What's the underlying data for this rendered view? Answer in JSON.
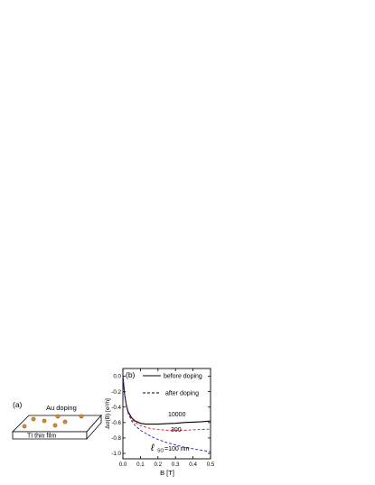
{
  "panel_a": {
    "label": "(a)",
    "doping_label": "Au doping",
    "film_label": "TI thin film"
  },
  "panel_b": {
    "label": "(b)",
    "annotations": [
      "10000",
      "300",
      "=100 nm"
    ],
    "annotation_symbol": "ℓ",
    "annotation_subscript": "SO"
  },
  "chart_data": {
    "type": "line",
    "xlabel": "B [T]",
    "ylabel": "Δσ(B) [e²/h]",
    "xlim": [
      0.0,
      0.5
    ],
    "ylim": [
      -1.07,
      0.1
    ],
    "xticks": [
      "0.0",
      "0.1",
      "0.2",
      "0.3",
      "0.4",
      "0.5"
    ],
    "xtick_values": [
      0.0,
      0.1,
      0.2,
      0.3,
      0.4,
      0.5
    ],
    "yticks": [
      "0.0",
      "-0.2",
      "-0.4",
      "-0.6",
      "-0.8",
      "-1.0"
    ],
    "ytick_values": [
      0.0,
      -0.2,
      -0.4,
      -0.6,
      -0.8,
      -1.0
    ],
    "legend_position": "top-right",
    "legend": [
      {
        "label": "before doping",
        "style": "solid",
        "color": "#000000"
      },
      {
        "label": "after doping",
        "style": "dashed",
        "color": "#000000"
      }
    ],
    "series": [
      {
        "name": "before doping",
        "color": "#000000",
        "style": "solid",
        "x": [
          0.0,
          0.005,
          0.01,
          0.02,
          0.03,
          0.05,
          0.07,
          0.1,
          0.13,
          0.16,
          0.2,
          0.25,
          0.3,
          0.35,
          0.4,
          0.45,
          0.5
        ],
        "y": [
          0.0,
          -0.12,
          -0.24,
          -0.38,
          -0.46,
          -0.54,
          -0.58,
          -0.61,
          -0.62,
          -0.62,
          -0.62,
          -0.615,
          -0.61,
          -0.6,
          -0.595,
          -0.59,
          -0.58
        ]
      },
      {
        "name": "",
        "color": "#d42020",
        "style": "dashed",
        "x": [
          0.0,
          0.005,
          0.01,
          0.02,
          0.03,
          0.05,
          0.07,
          0.1,
          0.13,
          0.16,
          0.2,
          0.25,
          0.3,
          0.35,
          0.4,
          0.45,
          0.5
        ],
        "y": [
          0.0,
          -0.12,
          -0.24,
          -0.38,
          -0.47,
          -0.56,
          -0.6,
          -0.64,
          -0.66,
          -0.68,
          -0.69,
          -0.7,
          -0.7,
          -0.7,
          -0.695,
          -0.69,
          -0.685
        ]
      },
      {
        "name": "",
        "color": "#2020c0",
        "style": "dashed",
        "x": [
          0.0,
          0.005,
          0.01,
          0.02,
          0.03,
          0.05,
          0.07,
          0.1,
          0.13,
          0.16,
          0.2,
          0.25,
          0.3,
          0.35,
          0.4,
          0.45,
          0.5
        ],
        "y": [
          0.0,
          -0.12,
          -0.24,
          -0.39,
          -0.48,
          -0.58,
          -0.64,
          -0.7,
          -0.74,
          -0.78,
          -0.82,
          -0.86,
          -0.89,
          -0.92,
          -0.94,
          -0.96,
          -0.98
        ]
      }
    ]
  }
}
